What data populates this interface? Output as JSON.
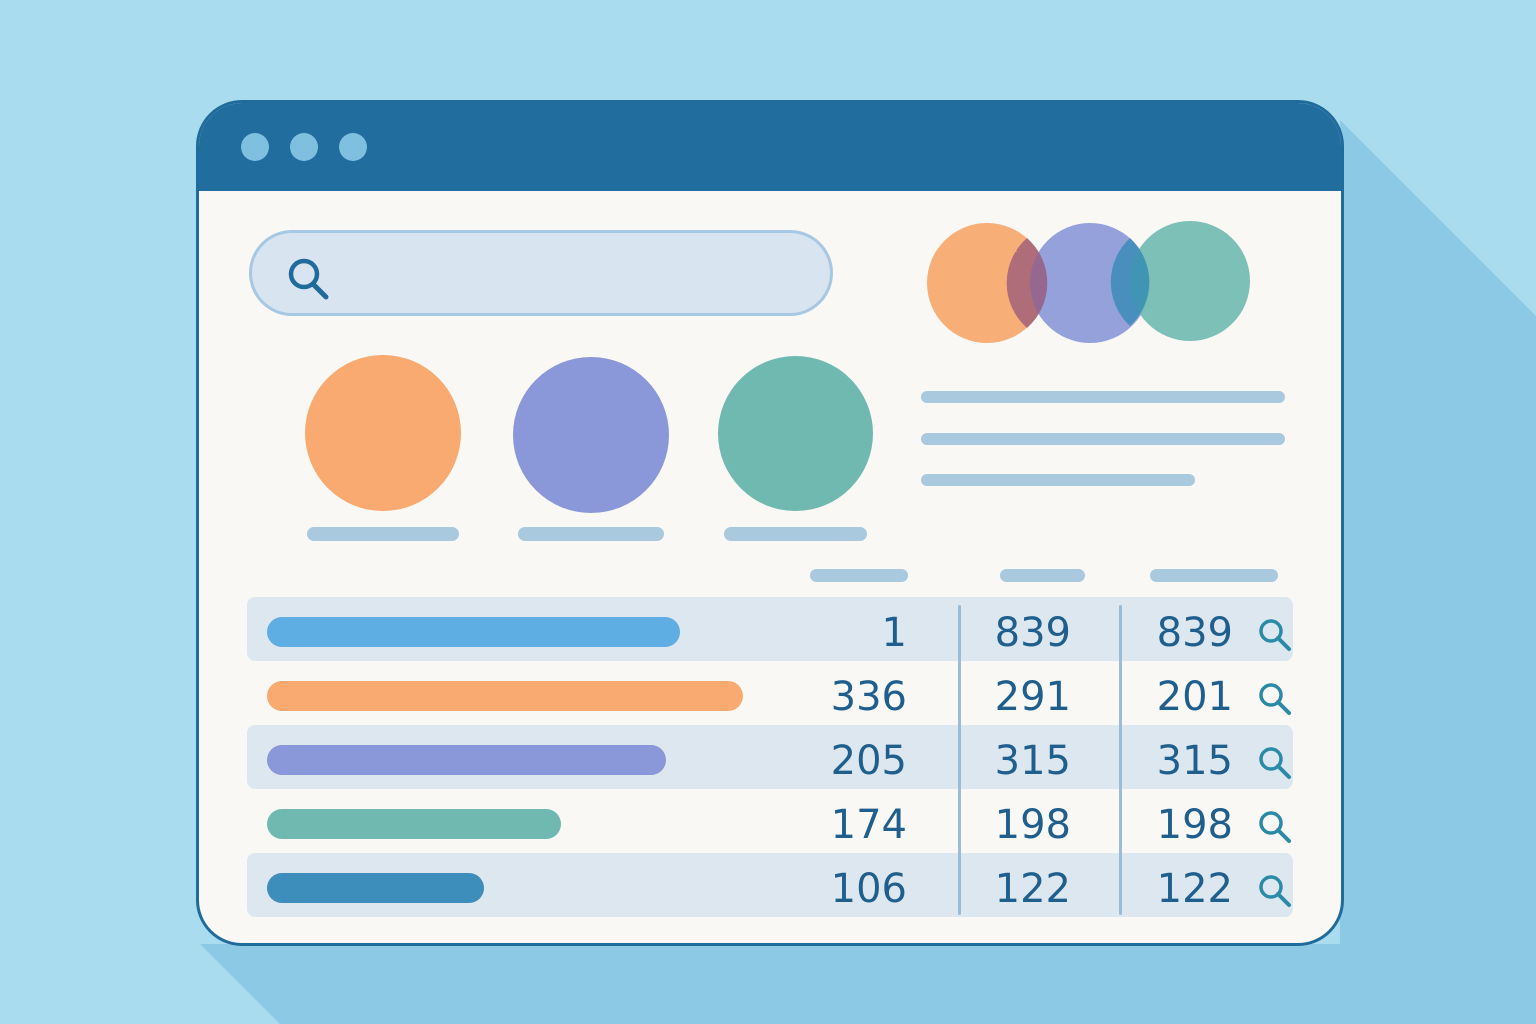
{
  "colors": {
    "background": "#a8dcee",
    "titlebar": "#216d9e",
    "orange": "#f8aa70",
    "purple": "#8a97d8",
    "teal": "#6fb9b1",
    "blue": "#5eade3",
    "dark_blue": "#3e8ebc",
    "text": "#1f5f8d"
  },
  "search": {
    "placeholder": "",
    "value": "",
    "icon": "search-icon"
  },
  "table": {
    "rows": [
      {
        "bar_color": "#5eade3",
        "bar_level": 0.59,
        "col1": "1",
        "col2": "839",
        "col3": "839",
        "icon": "search-icon"
      },
      {
        "bar_color": "#f8aa70",
        "bar_level": 0.68,
        "col1": "336",
        "col2": "291",
        "col3": "201",
        "icon": "search-icon"
      },
      {
        "bar_color": "#8a97d8",
        "bar_level": 0.57,
        "col1": "205",
        "col2": "315",
        "col3": "315",
        "icon": "search-icon"
      },
      {
        "bar_color": "#6fb9b1",
        "bar_level": 0.42,
        "col1": "174",
        "col2": "198",
        "col3": "198",
        "icon": "search-icon"
      },
      {
        "bar_color": "#3e8ebc",
        "bar_level": 0.31,
        "col1": "106",
        "col2": "122",
        "col3": "122",
        "icon": "search-icon"
      }
    ]
  }
}
